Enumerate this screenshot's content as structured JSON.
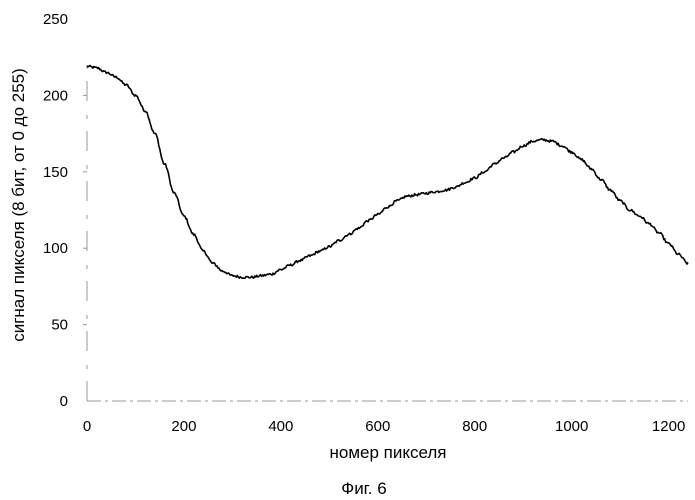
{
  "chart_data": {
    "type": "line",
    "title": "",
    "xlabel": "номер пикселя",
    "ylabel": "сигнал пикселя (8 бит, от 0 до 255)",
    "xlim": [
      0,
      1240
    ],
    "ylim": [
      0,
      250
    ],
    "xticks": [
      0,
      200,
      400,
      600,
      800,
      1000,
      1200
    ],
    "yticks": [
      0,
      50,
      100,
      150,
      200,
      250
    ],
    "grid": false,
    "legend": "none",
    "line_color": "#000000",
    "series": [
      {
        "x": [
          0,
          20,
          40,
          60,
          80,
          100,
          120,
          140,
          160,
          180,
          200,
          220,
          240,
          260,
          280,
          300,
          320,
          340,
          360,
          380,
          400,
          420,
          440,
          460,
          480,
          500,
          520,
          540,
          560,
          580,
          600,
          620,
          640,
          660,
          680,
          700,
          720,
          740,
          760,
          780,
          800,
          820,
          840,
          860,
          880,
          900,
          920,
          940,
          960,
          980,
          1000,
          1020,
          1040,
          1060,
          1080,
          1100,
          1120,
          1140,
          1160,
          1180,
          1200,
          1220,
          1240
        ],
        "values": [
          219,
          218,
          215,
          212,
          207,
          200,
          190,
          175,
          155,
          136,
          121,
          109,
          98,
          90,
          85,
          82,
          81,
          81,
          82,
          83,
          86,
          89,
          92,
          95,
          98,
          101,
          105,
          109,
          113,
          118,
          122,
          127,
          131,
          134,
          135,
          136,
          137,
          138,
          140,
          143,
          146,
          150,
          155,
          159,
          163,
          167,
          170,
          171,
          170,
          167,
          163,
          158,
          152,
          145,
          138,
          131,
          125,
          121,
          116,
          110,
          103,
          96,
          90
        ]
      }
    ]
  },
  "caption": "Фиг. 6"
}
